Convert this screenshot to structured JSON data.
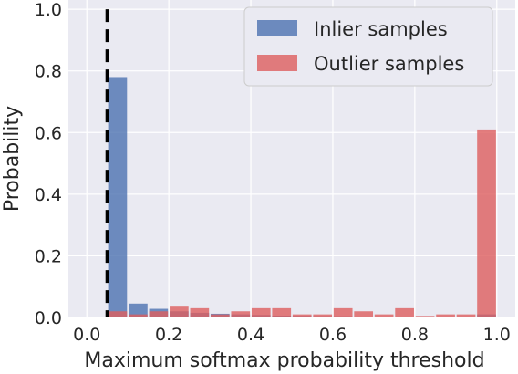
{
  "chart_data": {
    "type": "bar",
    "xlabel": "Maximum softmax probability threshold",
    "ylabel": "Probability",
    "xlim": [
      -0.045,
      1.045
    ],
    "ylim": [
      0,
      1.03
    ],
    "xticks": [
      "0.0",
      "0.2",
      "0.4",
      "0.6",
      "0.8",
      "1.0"
    ],
    "yticks": [
      "0.0",
      "0.2",
      "0.4",
      "0.6",
      "0.8",
      "1.0"
    ],
    "grid": true,
    "legend_position": "top-right",
    "bin_width": 0.05,
    "threshold_line": 0.05,
    "series": [
      {
        "name": "Inlier samples",
        "color": "#4c72b0",
        "bins": [
          0.0,
          0.05,
          0.1,
          0.15,
          0.2,
          0.25,
          0.3,
          0.35,
          0.4,
          0.45,
          0.5,
          0.55,
          0.6,
          0.65,
          0.7,
          0.75,
          0.8,
          0.85,
          0.9,
          0.95
        ],
        "values": [
          0.0,
          0.78,
          0.045,
          0.028,
          0.02,
          0.015,
          0.012,
          0.01,
          0.008,
          0.006,
          0.005,
          0.004,
          0.004,
          0.003,
          0.003,
          0.002,
          0.002,
          0.002,
          0.002,
          0.01
        ]
      },
      {
        "name": "Outlier samples",
        "color": "#dd5e5e",
        "bins": [
          0.0,
          0.05,
          0.1,
          0.15,
          0.2,
          0.25,
          0.3,
          0.35,
          0.4,
          0.45,
          0.5,
          0.55,
          0.6,
          0.65,
          0.7,
          0.75,
          0.8,
          0.85,
          0.9,
          0.95
        ],
        "values": [
          0.0,
          0.02,
          0.01,
          0.02,
          0.035,
          0.03,
          0.01,
          0.02,
          0.03,
          0.03,
          0.01,
          0.01,
          0.03,
          0.02,
          0.01,
          0.03,
          0.005,
          0.01,
          0.01,
          0.61
        ]
      }
    ]
  }
}
